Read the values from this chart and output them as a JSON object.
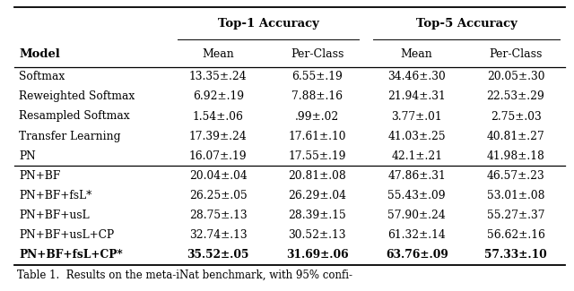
{
  "title_top1": "Top-1 Accuracy",
  "title_top5": "Top-5 Accuracy",
  "col_headers": [
    "Model",
    "Mean",
    "Per-Class",
    "Mean",
    "Per-Class"
  ],
  "rows": [
    [
      "Softmax",
      "13.35±.24",
      "6.55±.19",
      "34.46±.30",
      "20.05±.30"
    ],
    [
      "Reweighted Softmax",
      "6.92±.19",
      "7.88±.16",
      "21.94±.31",
      "22.53±.29"
    ],
    [
      "Resampled Softmax",
      "1.54±.06",
      ".99±.02",
      "3.77±.01",
      "2.75±.03"
    ],
    [
      "Transfer Learning",
      "17.39±.24",
      "17.61±.10",
      "41.03±.25",
      "40.81±.27"
    ],
    [
      "PN",
      "16.07±.19",
      "17.55±.19",
      "42.1±.21",
      "41.98±.18"
    ],
    [
      "PN+BF",
      "20.04±.04",
      "20.81±.08",
      "47.86±.31",
      "46.57±.23"
    ],
    [
      "PN+BF+fsL*",
      "26.25±.05",
      "26.29±.04",
      "55.43±.09",
      "53.01±.08"
    ],
    [
      "PN+BF+usL",
      "28.75±.13",
      "28.39±.15",
      "57.90±.24",
      "55.27±.37"
    ],
    [
      "PN+BF+usL+CP",
      "32.74±.13",
      "30.52±.13",
      "61.32±.14",
      "56.62±.16"
    ],
    [
      "PN+BF+fsL+CP*",
      "35.52±.05",
      "31.69±.06",
      "63.76±.09",
      "57.33±.10"
    ]
  ],
  "caption": "Table 1.  Results on the meta-iNat benchmark, with 95% confi-",
  "bg_color": "#ffffff",
  "text_color": "#000000",
  "figsize": [
    6.4,
    3.25
  ],
  "dpi": 100
}
